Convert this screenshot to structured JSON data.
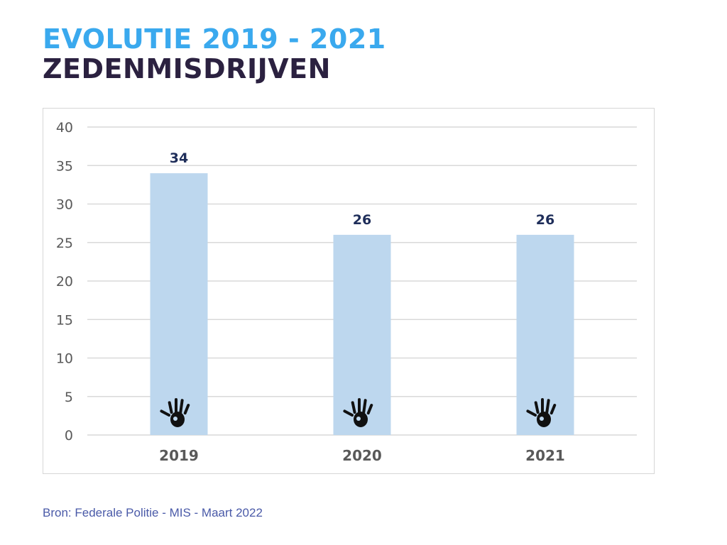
{
  "header": {
    "title_line1": "EVOLUTIE 2019 - 2021",
    "title_line2": "ZEDENMISDRIJVEN"
  },
  "colors": {
    "title_accent": "#3aa9ee",
    "title_dark": "#2b2140",
    "bar": "#bdd7ee",
    "data_label": "#1f2e5a",
    "axis_text": "#595959",
    "gridline": "#d9d9d9",
    "source_text": "#4a5aa8",
    "icon": "#111111"
  },
  "chart_data": {
    "type": "bar",
    "categories": [
      "2019",
      "2020",
      "2021"
    ],
    "values": [
      34,
      26,
      26
    ],
    "ylim": [
      0,
      40
    ],
    "yticks": [
      "0",
      "5",
      "10",
      "15",
      "20",
      "25",
      "30",
      "35",
      "40"
    ],
    "grid": true,
    "bar_icon": "handprint-icon"
  },
  "footer": {
    "source": "Bron: Federale Politie - MIS - Maart 2022"
  }
}
